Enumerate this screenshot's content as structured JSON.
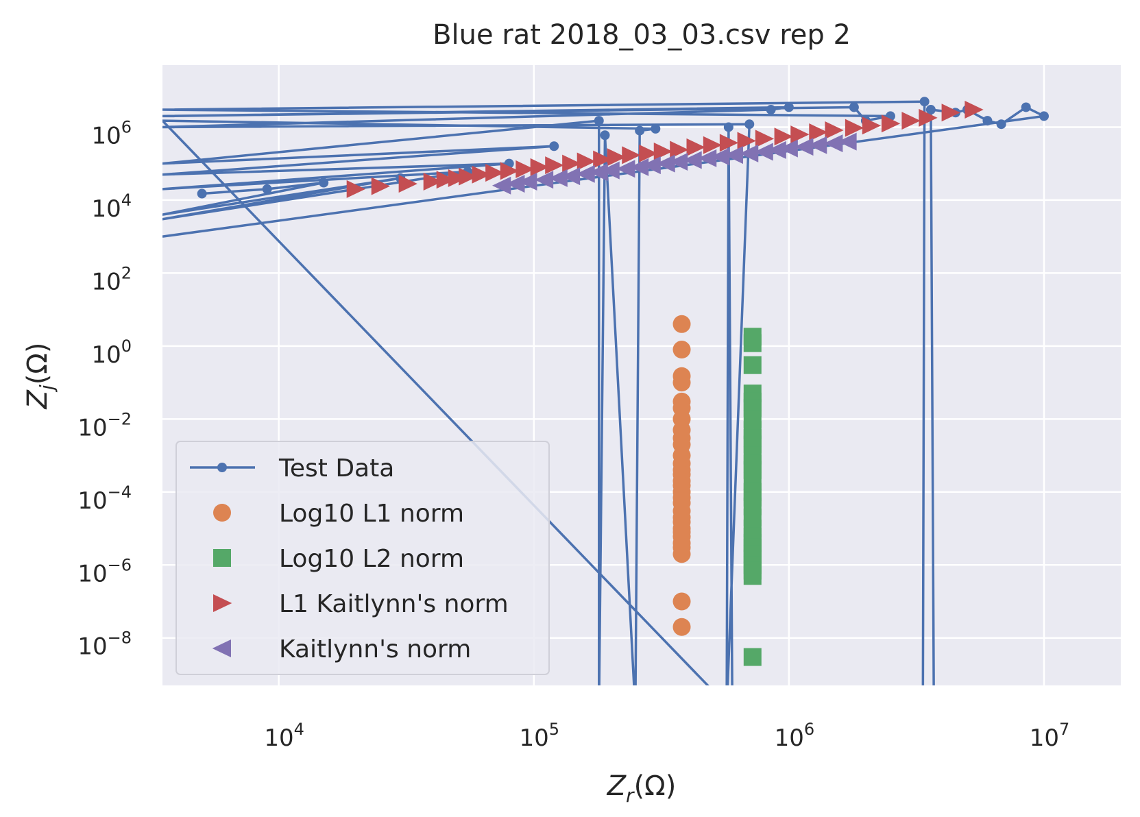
{
  "chart_data": {
    "type": "scatter",
    "title": "Blue rat 2018_03_03.csv rep 2",
    "xlabel": "Z_r(Ω)",
    "ylabel": "Z_j(Ω)",
    "xscale": "log",
    "yscale": "log",
    "xlim": [
      3500,
      20000000
    ],
    "ylim": [
      5e-10,
      50000000
    ],
    "grid": true,
    "legend_position": "lower-left",
    "x_ticks": [
      {
        "base": "10",
        "exp": "4",
        "value": 10000
      },
      {
        "base": "10",
        "exp": "5",
        "value": 100000
      },
      {
        "base": "10",
        "exp": "6",
        "value": 1000000
      },
      {
        "base": "10",
        "exp": "7",
        "value": 10000000
      }
    ],
    "y_ticks": [
      {
        "base": "10",
        "exp": "6",
        "value": 1000000
      },
      {
        "base": "10",
        "exp": "4",
        "value": 10000
      },
      {
        "base": "10",
        "exp": "2",
        "value": 100
      },
      {
        "base": "10",
        "exp": "0",
        "value": 1
      },
      {
        "base": "10",
        "exp": "−2",
        "value": 0.01
      },
      {
        "base": "10",
        "exp": "−4",
        "value": 0.0001
      },
      {
        "base": "10",
        "exp": "−6",
        "value": 1e-06
      },
      {
        "base": "10",
        "exp": "−8",
        "value": 1e-08
      }
    ],
    "series": [
      {
        "name": "Test Data",
        "style": "line-dot",
        "color": "#4C72B0",
        "x": [
          5000,
          9000,
          15000,
          3500,
          30000,
          3500,
          55000,
          3500,
          80000,
          3500,
          120000,
          3500,
          180000,
          180000,
          190000,
          250000,
          260000,
          300000,
          3500,
          600000,
          580000,
          570000,
          700000,
          3500,
          850000,
          1000000,
          3500,
          1800000,
          2000000,
          2500000,
          3500,
          3400000,
          3350000,
          3700000,
          3600000,
          4500000,
          5000000,
          6000000,
          6800000,
          8500000,
          10000000,
          3500
        ],
        "y": [
          15000,
          20000,
          30000,
          4000,
          40000,
          3000,
          60000,
          20000,
          100000,
          50000,
          300000,
          100000,
          1500000,
          1e-10,
          600000,
          1e-10,
          800000,
          900000,
          1500000,
          1e-10,
          1000000,
          1e-10,
          1200000,
          1000000,
          3000000,
          3500000,
          2000000,
          3500000,
          1500000,
          2000000,
          3000000,
          5000000,
          1e-10,
          1e-10,
          3000000,
          2500000,
          3000000,
          1500000,
          1200000,
          3500000,
          2000000,
          1000
        ]
      },
      {
        "name": "Log10 L1 norm",
        "style": "circle",
        "color": "#DD8452",
        "x": [
          380000,
          380000,
          380000,
          380000,
          380000,
          380000,
          380000,
          380000,
          380000,
          380000,
          380000,
          380000,
          380000,
          380000,
          380000,
          380000,
          380000,
          380000,
          380000,
          380000,
          380000,
          380000,
          380000,
          380000,
          380000,
          380000,
          380000,
          380000,
          380000,
          380000
        ],
        "y": [
          4,
          0.8,
          0.15,
          0.1,
          0.03,
          0.02,
          0.01,
          0.005,
          0.003,
          0.002,
          0.001,
          0.0006,
          0.0004,
          0.0003,
          0.0002,
          0.00015,
          0.0001,
          7e-05,
          5e-05,
          3e-05,
          2e-05,
          1.5e-05,
          1e-05,
          8e-06,
          6e-06,
          4e-06,
          3e-06,
          2e-06,
          1e-07,
          2e-08
        ]
      },
      {
        "name": "Log10 L2 norm",
        "style": "square",
        "color": "#55A868",
        "x": [
          720000,
          720000,
          720000,
          720000,
          720000,
          720000,
          720000,
          720000,
          720000,
          720000,
          720000,
          720000,
          720000,
          720000,
          720000,
          720000,
          720000,
          720000,
          720000,
          720000,
          720000,
          720000,
          720000,
          720000,
          720000,
          720000,
          720000,
          720000
        ],
        "y": [
          1.8,
          1.2,
          0.3,
          0.05,
          0.03,
          0.02,
          0.01,
          0.005,
          0.003,
          0.002,
          0.001,
          0.0006,
          0.0004,
          0.0002,
          0.0001,
          7e-05,
          4e-05,
          2e-05,
          1e-05,
          6e-06,
          4e-06,
          3e-06,
          2e-06,
          1.5e-06,
          1e-06,
          7e-07,
          5e-07,
          3e-09
        ]
      },
      {
        "name": "L1 Kaitlynn's norm",
        "style": "triangle-right",
        "color": "#C44E52",
        "x": [
          20000,
          25000,
          32000,
          40000,
          45000,
          50000,
          55000,
          62000,
          70000,
          80000,
          92000,
          105000,
          120000,
          140000,
          160000,
          185000,
          210000,
          240000,
          280000,
          320000,
          370000,
          430000,
          500000,
          580000,
          680000,
          800000,
          950000,
          1100000,
          1300000,
          1500000,
          1800000,
          2100000,
          2500000,
          3000000,
          3500000,
          4300000,
          5300000
        ],
        "y": [
          20000,
          24000,
          28000,
          32000,
          36000,
          40000,
          44000,
          50000,
          56000,
          63000,
          70000,
          80000,
          90000,
          100000,
          115000,
          130000,
          150000,
          170000,
          190000,
          215000,
          240000,
          280000,
          320000,
          370000,
          420000,
          480000,
          550000,
          630000,
          720000,
          820000,
          950000,
          1100000,
          1250000,
          1500000,
          1800000,
          2500000,
          3000000
        ]
      },
      {
        "name": "Kaitlynn's norm",
        "style": "triangle-left",
        "color": "#8172B3",
        "x": [
          75000,
          85000,
          95000,
          110000,
          125000,
          140000,
          160000,
          180000,
          200000,
          230000,
          260000,
          290000,
          330000,
          370000,
          420000,
          480000,
          540000,
          610000,
          700000,
          800000,
          900000,
          1000000,
          1150000,
          1300000,
          1500000,
          1700000
        ],
        "y": [
          25000,
          28000,
          32000,
          36000,
          40000,
          45000,
          52000,
          58000,
          65000,
          72000,
          80000,
          90000,
          100000,
          112000,
          125000,
          140000,
          155000,
          172000,
          190000,
          210000,
          235000,
          260000,
          290000,
          320000,
          360000,
          400000
        ]
      }
    ]
  }
}
